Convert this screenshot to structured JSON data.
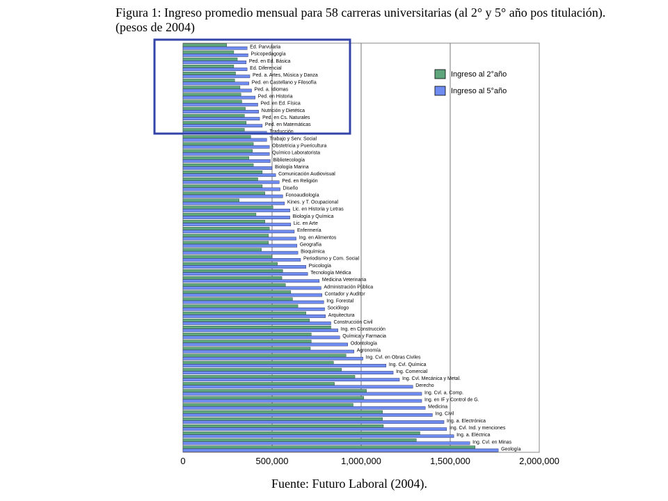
{
  "title": "Figura 1: Ingreso promedio mensual para 58 carreras universitarias (al 2° y 5° año pos titulación). (pesos de 2004)",
  "source": "Fuente: Futuro Laboral (2004).",
  "chart_data": {
    "type": "bar",
    "orientation": "horizontal",
    "xlim": [
      0,
      2000000
    ],
    "xticks": [
      "0",
      "500,000",
      "1,000,000",
      "1,500,000",
      "2,000,000"
    ],
    "grid": "vertical gridlines at 500,000 intervals",
    "legend_position": "top-right",
    "categories": [
      "Ed. Parvularia",
      "Psicopedagogía",
      "Ped. en Ed. Básica",
      "Ed. Diferencial",
      "Ped. a. Artes, Música y Danza",
      "Ped. en Castellano y Filosofía",
      "Ped. a. Idiomas",
      "Ped. en Historia",
      "Ped. en Ed. Física",
      "Nutrición y Dietética",
      "Ped. en Cs. Naturales",
      "Ped. en Matemáticas",
      "Traducción",
      "Trabajo y Serv. Social",
      "Obstetricia y Puericultura",
      "Químico Laboratorista",
      "Bibliotecología",
      "Biología Marina",
      "Comunicación Audiovisual",
      "Ped. en Religión",
      "Diseño",
      "Fonoaudiología",
      "Kines. y T. Ocupacional",
      "Lic. en Historia y Letras",
      "Biología y Química",
      "Lic. en Arte",
      "Enfermería",
      "Ing. en Alimentos",
      "Geografía",
      "Bioquímica",
      "Periodismo y Com. Social",
      "Psicología",
      "Tecnología Médica",
      "Medicina Veterinaria",
      "Administración Pública",
      "Contador y Auditor",
      "Ing. Forestal",
      "Sociólogo",
      "Arquitectura",
      "Construcción Civil",
      "Ing. en Construcción",
      "Química y Farmacia",
      "Odontología",
      "Agronomía",
      "Ing. Cvl. en Obras Civiles",
      "Ing. Cvl. Química",
      "Ing. Comercial",
      "Ing. Cvl. Mecánica y Metal.",
      "Derecho",
      "Ing. Cvl. a. Comp.",
      "Ing. en IF y Control de G.",
      "Medicina",
      "Ing. Civil",
      "Ing. a. Electrónica",
      "Ing. Cvl. Ind. y menciones",
      "Ing. a. Eléctrica",
      "Ing. Cvl. en Minas",
      "Geología"
    ],
    "series": [
      {
        "name": "Ingreso al 2°año",
        "color": "#5fa67d",
        "values": [
          245000,
          285000,
          305000,
          285000,
          295000,
          290000,
          320000,
          325000,
          330000,
          350000,
          345000,
          355000,
          345000,
          380000,
          395000,
          390000,
          370000,
          395000,
          445000,
          420000,
          445000,
          460000,
          315000,
          505000,
          410000,
          460000,
          485000,
          480000,
          480000,
          440000,
          500000,
          530000,
          560000,
          555000,
          575000,
          605000,
          615000,
          645000,
          690000,
          710000,
          830000,
          720000,
          720000,
          715000,
          915000,
          845000,
          890000,
          965000,
          850000,
          1030000,
          1015000,
          955000,
          1120000,
          1120000,
          1125000,
          1330000,
          1310000,
          1640000
        ]
      },
      {
        "name": "Ingreso al 5°año",
        "color": "#6f8cf0",
        "values": [
          360000,
          365000,
          355000,
          360000,
          375000,
          370000,
          385000,
          405000,
          420000,
          425000,
          430000,
          445000,
          470000,
          470000,
          485000,
          485000,
          490000,
          500000,
          520000,
          540000,
          545000,
          560000,
          570000,
          600000,
          600000,
          605000,
          625000,
          635000,
          640000,
          645000,
          660000,
          690000,
          700000,
          765000,
          775000,
          780000,
          790000,
          795000,
          800000,
          830000,
          870000,
          880000,
          925000,
          960000,
          1010000,
          1140000,
          1180000,
          1215000,
          1290000,
          1340000,
          1340000,
          1360000,
          1400000,
          1465000,
          1480000,
          1520000,
          1610000,
          1770000
        ]
      }
    ]
  }
}
